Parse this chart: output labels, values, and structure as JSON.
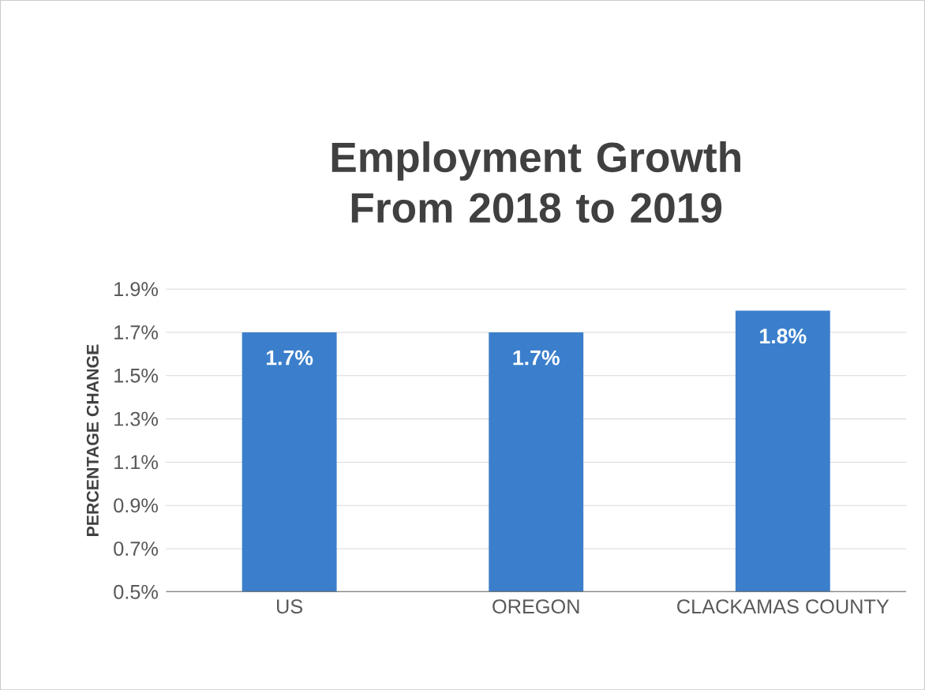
{
  "chart_data": {
    "type": "bar",
    "title": "Employment Growth From 2018 to 2019",
    "ylabel": "PERCENTAGE CHANGE",
    "categories": [
      "US",
      "OREGON",
      "CLACKAMAS COUNTY"
    ],
    "values": [
      1.7,
      1.7,
      1.8
    ],
    "value_labels": [
      "1.7%",
      "1.7%",
      "1.8%"
    ],
    "color": "#3b7fcc",
    "ylim": [
      0.5,
      1.9
    ],
    "yticks": [
      {
        "value": 0.5,
        "label": "0.5%"
      },
      {
        "value": 0.7,
        "label": "0.7%"
      },
      {
        "value": 0.9,
        "label": "0.9%"
      },
      {
        "value": 1.1,
        "label": "1.1%"
      },
      {
        "value": 1.3,
        "label": "1.3%"
      },
      {
        "value": 1.5,
        "label": "1.5%"
      },
      {
        "value": 1.7,
        "label": "1.7%"
      },
      {
        "value": 1.9,
        "label": "1.9%"
      }
    ],
    "grid": "y"
  }
}
